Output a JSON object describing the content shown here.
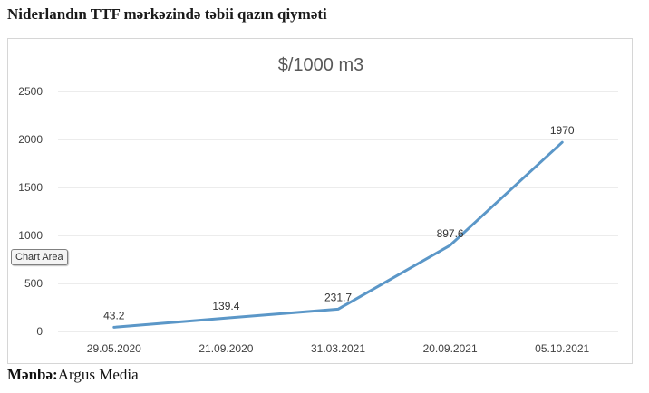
{
  "heading": "Niderlandın TTF mərkəzində təbii qazın qiyməti",
  "tooltip": "Chart Area",
  "source": {
    "label": "Mənbə:",
    "value": "Argus Media"
  },
  "colors": {
    "series": "#5B97C8",
    "grid": "#d9d9d9"
  },
  "chart_data": {
    "type": "line",
    "title": "$/1000 m3",
    "categories": [
      "29.05.2020",
      "21.09.2020",
      "31.03.2021",
      "20.09.2021",
      "05.10.2021"
    ],
    "series": [
      {
        "values": [
          43.2,
          139.4,
          231.7,
          897.6,
          1970
        ]
      }
    ],
    "data_labels": [
      "43.2",
      "139.4",
      "231.7",
      "897.6",
      "1970"
    ],
    "y_ticks": [
      "0",
      "500",
      "1000",
      "1500",
      "2000",
      "2500"
    ],
    "ylim": [
      0,
      2500
    ],
    "grid": true,
    "legend": "none"
  }
}
